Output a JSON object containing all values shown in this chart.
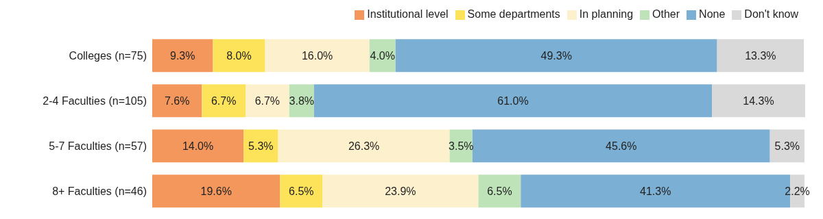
{
  "chart_data": {
    "type": "bar",
    "orientation": "horizontal",
    "stacked": true,
    "categories": [
      "Colleges (n=75)",
      "2-4 Faculties (n=105)",
      "5-7 Faculties (n=57)",
      "8+ Faculties (n=46)"
    ],
    "series": [
      {
        "name": "Institutional level",
        "color": "#f4975c",
        "values": [
          9.3,
          7.6,
          14.0,
          19.6
        ],
        "value_labels": [
          "9.3%",
          "7.6%",
          "14.0%",
          "19.6%"
        ]
      },
      {
        "name": "Some departments",
        "color": "#fde35a",
        "values": [
          8.0,
          6.7,
          5.3,
          6.5
        ],
        "value_labels": [
          "8.0%",
          "6.7%",
          "5.3%",
          "6.5%"
        ]
      },
      {
        "name": "In planning",
        "color": "#fdf1cd",
        "values": [
          16.0,
          6.7,
          26.3,
          23.9
        ],
        "value_labels": [
          "16.0%",
          "6.7%",
          "26.3%",
          "23.9%"
        ]
      },
      {
        "name": "Other",
        "color": "#bee3b9",
        "values": [
          4.0,
          3.8,
          3.5,
          6.5
        ],
        "value_labels": [
          "4.0%",
          "3.8%",
          "3.5%",
          "6.5%"
        ]
      },
      {
        "name": "None",
        "color": "#7bafd4",
        "values": [
          49.3,
          61.0,
          45.6,
          41.3
        ],
        "value_labels": [
          "49.3%",
          "61.0%",
          "45.6%",
          "41.3%"
        ]
      },
      {
        "name": "Don't know",
        "color": "#d9d9d9",
        "values": [
          13.3,
          14.3,
          5.3,
          2.2
        ],
        "value_labels": [
          "13.3%",
          "14.3%",
          "5.3%",
          "2.2%"
        ]
      }
    ],
    "legend": "top",
    "tick_labels": "y"
  }
}
